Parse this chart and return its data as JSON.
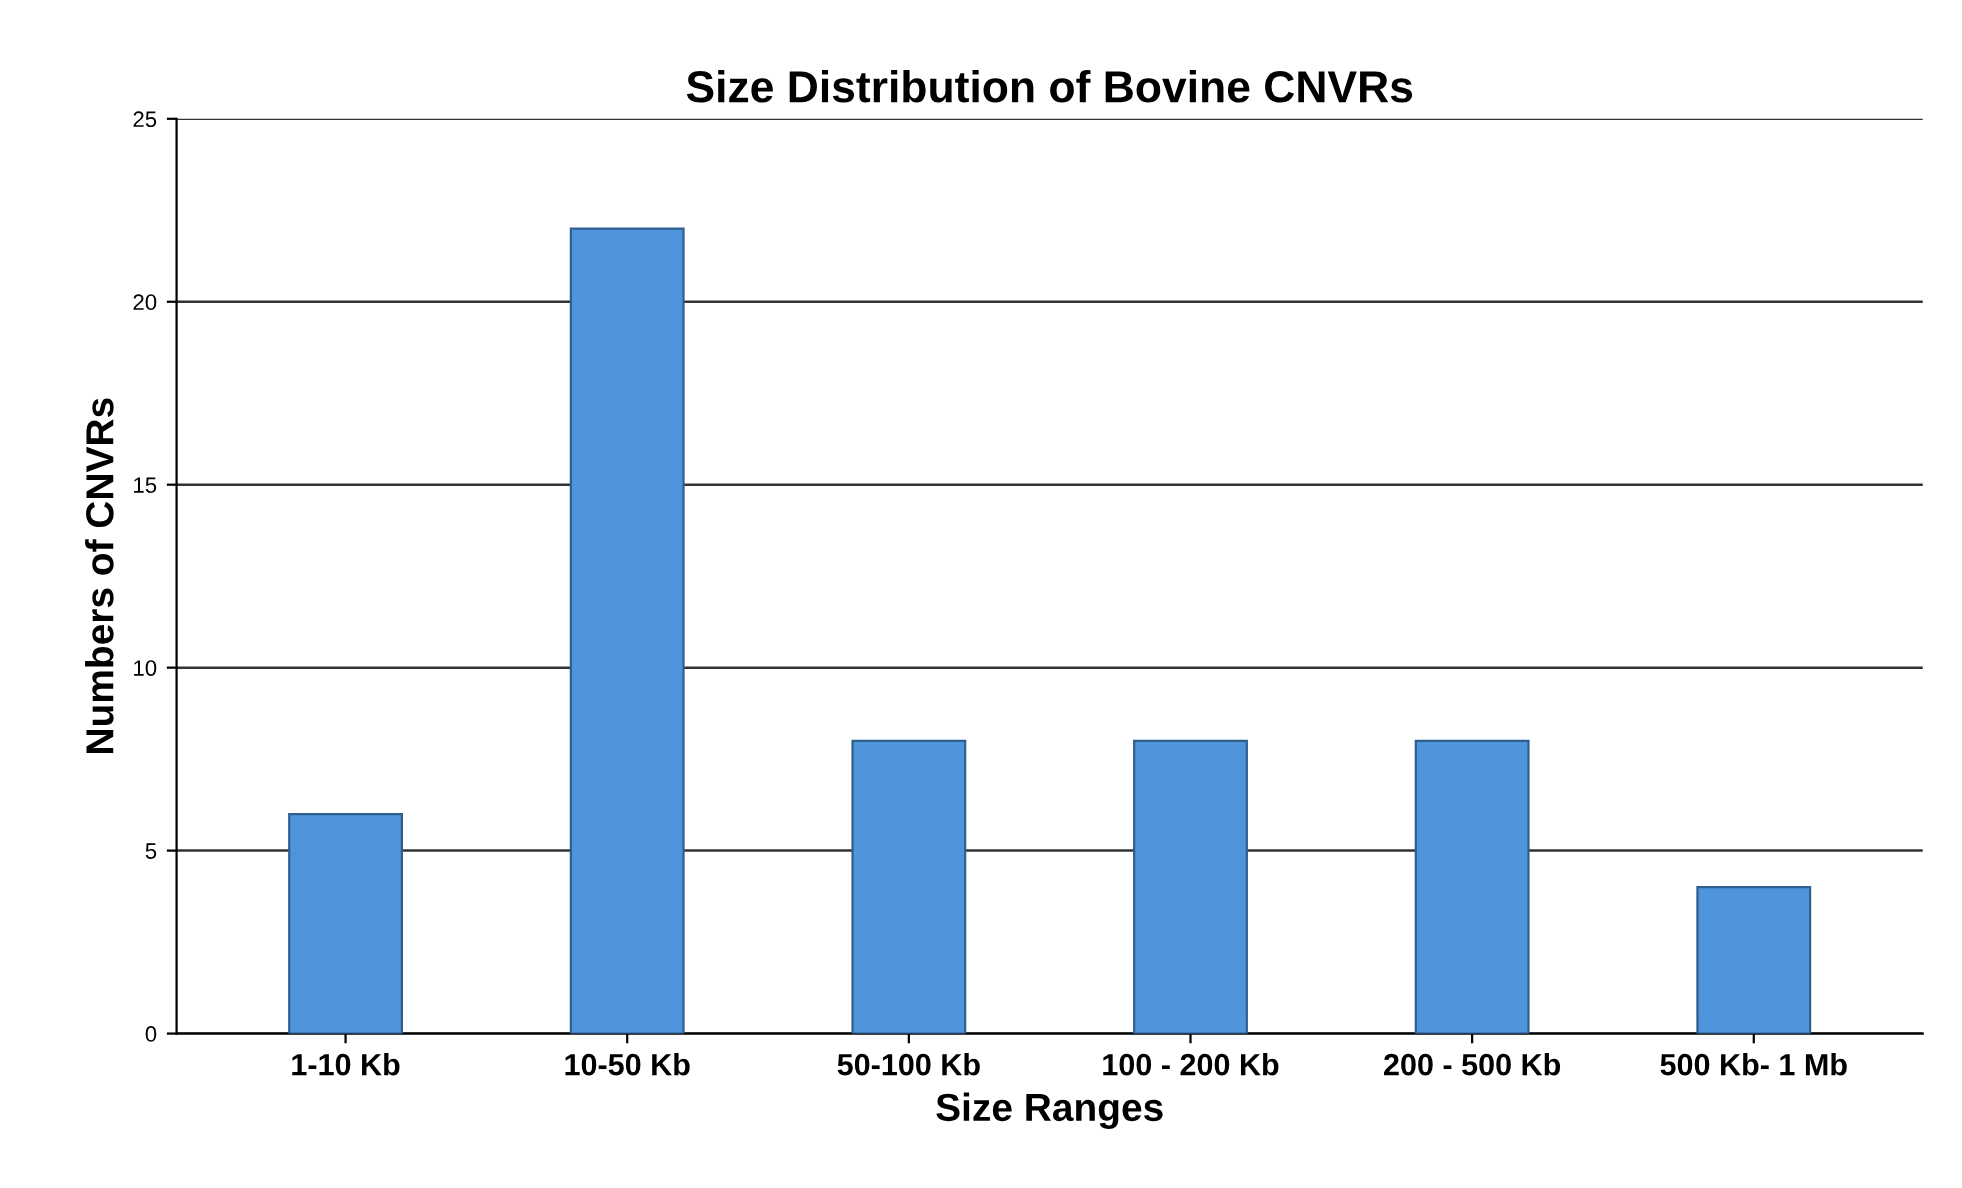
{
  "chart_data": {
    "type": "bar",
    "title": "Size Distribution of Bovine CNVRs",
    "xlabel": "Size Ranges",
    "ylabel": "Numbers of CNVRs",
    "categories": [
      "1-10 Kb",
      "10-50 Kb",
      "50-100 Kb",
      "100 - 200 Kb",
      "200 - 500 Kb",
      "500 Kb- 1 Mb"
    ],
    "values": [
      6,
      22,
      8,
      8,
      8,
      4
    ],
    "color": "#4f95dc",
    "ylim": [
      0,
      25
    ],
    "yticks": [
      0,
      5,
      10,
      15,
      20,
      25
    ],
    "grid": "y"
  }
}
